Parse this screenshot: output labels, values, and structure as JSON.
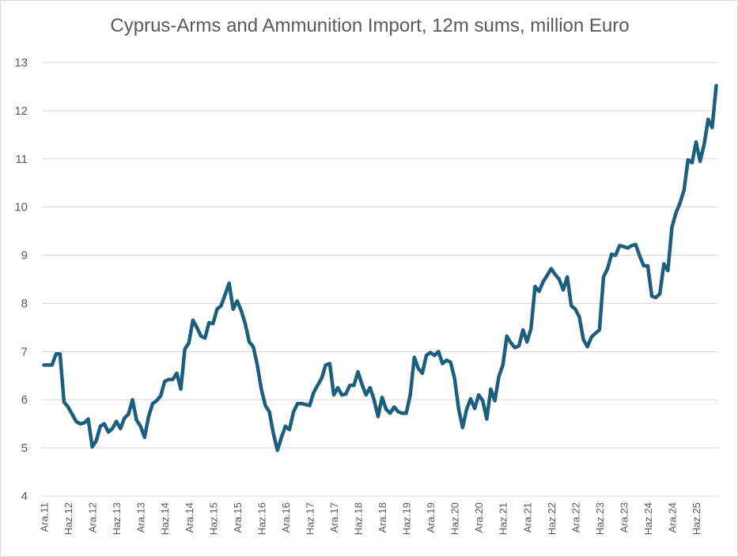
{
  "chart_data": {
    "type": "line",
    "title": "Cyprus-Arms and Ammunition Import, 12m sums, million Euro",
    "ylim": [
      4,
      13
    ],
    "yticks": [
      4,
      5,
      6,
      7,
      8,
      9,
      10,
      11,
      12,
      13
    ],
    "grid": true,
    "legend": "none",
    "series_color": "#1b5e7e",
    "x_tick_labels": [
      "Ara.11",
      "Haz.12",
      "Ara.12",
      "Haz.13",
      "Ara.13",
      "Haz.14",
      "Ara.14",
      "Haz.15",
      "Ara.15",
      "Haz.16",
      "Ara.16",
      "Haz.17",
      "Ara.17",
      "Haz.18",
      "Ara.18",
      "Haz.19",
      "Ara.19",
      "Haz.20",
      "Ara.20",
      "Haz.21",
      "Ara.21",
      "Haz.22",
      "Ara.22",
      "Haz.23",
      "Ara.23",
      "Haz.24",
      "Ara.24",
      "Haz.25"
    ],
    "series": [
      {
        "values": [
          6.72,
          6.72,
          6.72,
          6.95,
          6.95,
          5.95,
          5.85,
          5.7,
          5.55,
          5.5,
          5.52,
          5.6,
          5.02,
          5.15,
          5.45,
          5.5,
          5.33,
          5.4,
          5.55,
          5.4,
          5.62,
          5.7,
          6.0,
          5.58,
          5.45,
          5.22,
          5.65,
          5.92,
          5.98,
          6.08,
          6.38,
          6.42,
          6.42,
          6.55,
          6.22,
          7.05,
          7.18,
          7.65,
          7.5,
          7.32,
          7.28,
          7.6,
          7.58,
          7.88,
          7.95,
          8.18,
          8.42,
          7.88,
          8.05,
          7.85,
          7.58,
          7.2,
          7.1,
          6.72,
          6.22,
          5.88,
          5.75,
          5.3,
          4.95,
          5.22,
          5.45,
          5.38,
          5.75,
          5.92,
          5.92,
          5.9,
          5.88,
          6.15,
          6.3,
          6.45,
          6.72,
          6.75,
          6.1,
          6.25,
          6.1,
          6.12,
          6.3,
          6.3,
          6.58,
          6.32,
          6.1,
          6.25,
          6.0,
          5.65,
          6.05,
          5.8,
          5.72,
          5.85,
          5.75,
          5.72,
          5.72,
          6.1,
          6.88,
          6.65,
          6.55,
          6.92,
          6.98,
          6.92,
          7.0,
          6.75,
          6.82,
          6.78,
          6.45,
          5.82,
          5.42,
          5.8,
          6.02,
          5.82,
          6.1,
          5.98,
          5.6,
          6.22,
          5.98,
          6.48,
          6.72,
          7.32,
          7.18,
          7.08,
          7.12,
          7.45,
          7.2,
          7.48,
          8.35,
          8.25,
          8.45,
          8.58,
          8.72,
          8.6,
          8.5,
          8.28,
          8.55,
          7.95,
          7.88,
          7.72,
          7.25,
          7.1,
          7.3,
          7.38,
          7.45,
          8.55,
          8.72,
          9.02,
          9.0,
          9.2,
          9.18,
          9.15,
          9.2,
          9.22,
          8.98,
          8.78,
          8.78,
          8.15,
          8.12,
          8.2,
          8.82,
          8.68,
          9.58,
          9.88,
          10.08,
          10.35,
          10.98,
          10.92,
          11.35,
          10.95,
          11.3,
          11.82,
          11.65,
          12.52
        ]
      }
    ]
  }
}
